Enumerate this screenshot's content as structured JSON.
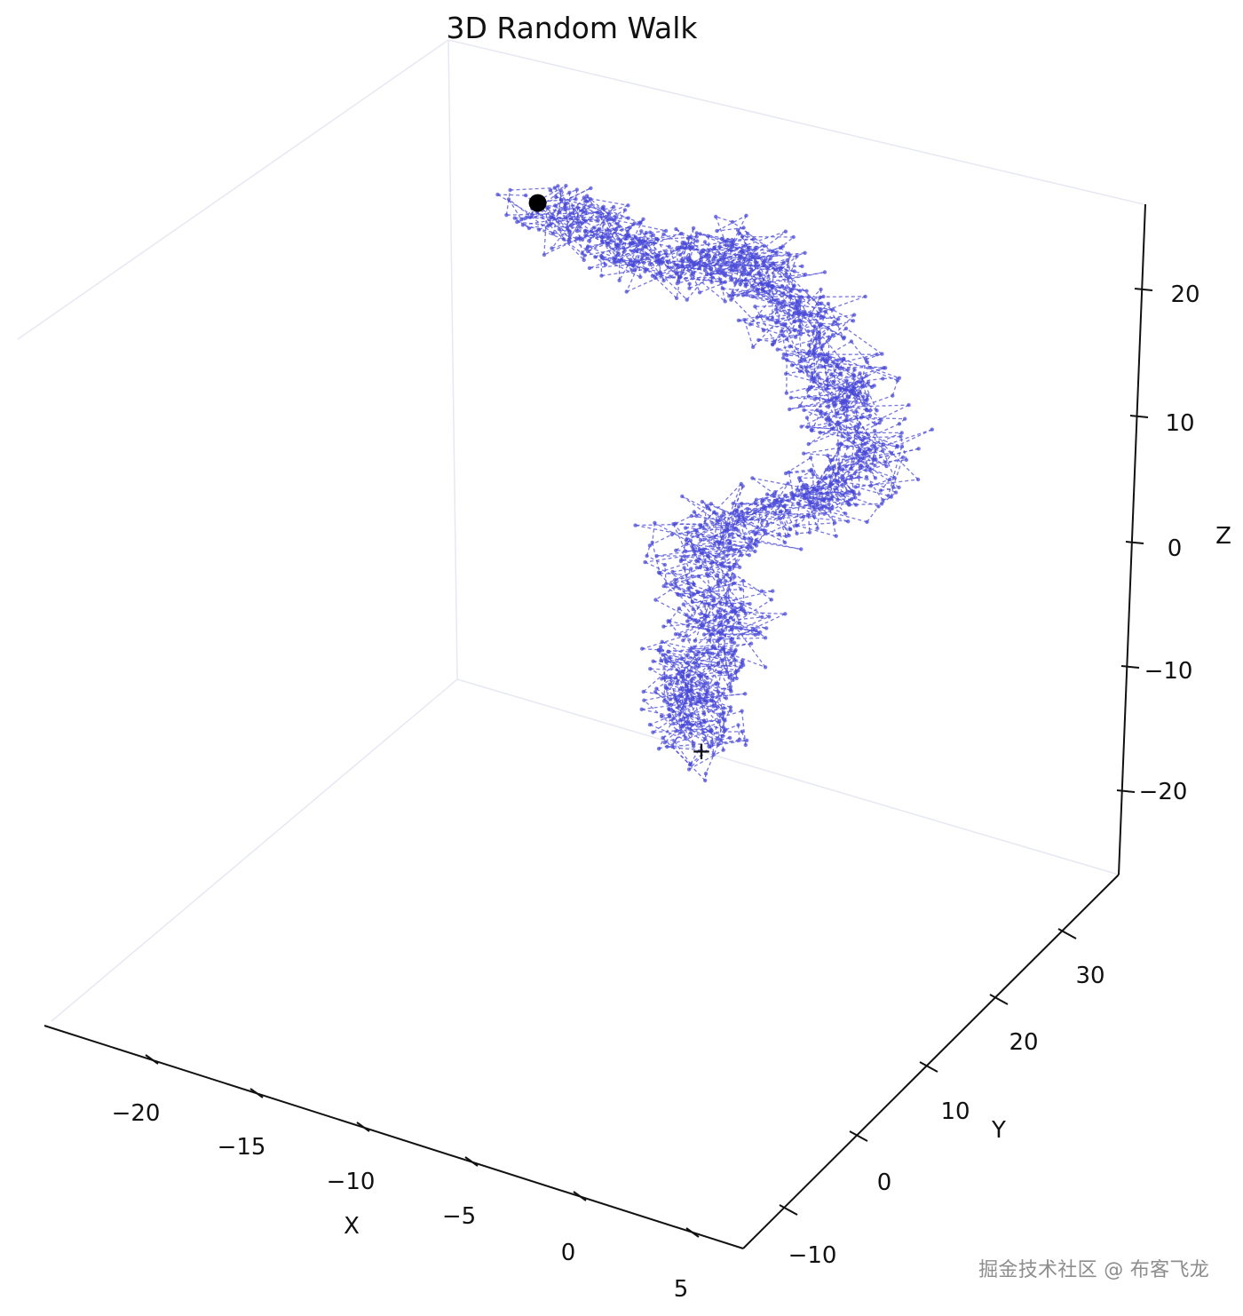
{
  "chart_data": {
    "type": "scatter",
    "title": "3D Random Walk",
    "xlabel": "X",
    "ylabel": "Y",
    "zlabel": "Z",
    "x_ticks": [
      "−20",
      "−15",
      "−10",
      "−5",
      "0",
      "5"
    ],
    "y_ticks": [
      "−10",
      "0",
      "10",
      "20",
      "30"
    ],
    "z_ticks": [
      "−20",
      "−10",
      "0",
      "10",
      "20"
    ],
    "xlim": [
      -25,
      6
    ],
    "ylim": [
      -13,
      38
    ],
    "zlim": [
      -26,
      28
    ],
    "grid": false,
    "series": [
      {
        "style": "dashed line with small round markers",
        "color": "#4a4ad8",
        "points_xyz": [
          [
            0,
            0,
            0
          ],
          [
            -1,
            2,
            2
          ],
          [
            -2,
            4,
            3
          ],
          [
            -1,
            7,
            5
          ],
          [
            -3,
            10,
            6
          ],
          [
            -4,
            13,
            8
          ],
          [
            -2,
            16,
            9
          ],
          [
            0,
            18,
            11
          ],
          [
            1,
            21,
            12
          ],
          [
            -1,
            24,
            14
          ],
          [
            -2,
            26,
            15
          ],
          [
            -4,
            28,
            17
          ],
          [
            -6,
            29,
            18
          ],
          [
            -8,
            31,
            19
          ],
          [
            -10,
            30,
            17
          ],
          [
            -12,
            28,
            18
          ],
          [
            -14,
            27,
            20
          ],
          [
            -16,
            26,
            21
          ]
        ]
      }
    ],
    "start_marker": {
      "label": "+",
      "xyz": [
        0,
        0,
        0
      ]
    },
    "end_marker": {
      "shape": "filled circle",
      "xyz": [
        -16,
        26,
        21
      ]
    }
  },
  "watermark": "掘金技术社区 @ 布客飞龙"
}
